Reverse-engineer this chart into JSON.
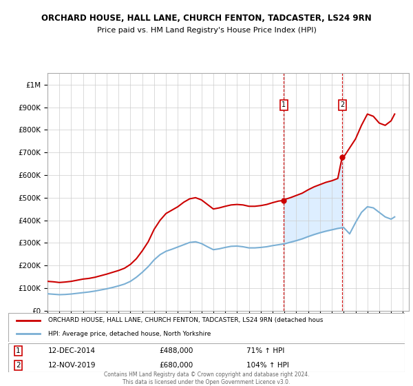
{
  "title": "ORCHARD HOUSE, HALL LANE, CHURCH FENTON, TADCASTER, LS24 9RN",
  "subtitle": "Price paid vs. HM Land Registry's House Price Index (HPI)",
  "ylim": [
    0,
    1050000
  ],
  "yticks": [
    0,
    100000,
    200000,
    300000,
    400000,
    500000,
    600000,
    700000,
    800000,
    900000,
    1000000
  ],
  "ytick_labels": [
    "£0",
    "£100K",
    "£200K",
    "£300K",
    "£400K",
    "£500K",
    "£600K",
    "£700K",
    "£800K",
    "£900K",
    "£1M"
  ],
  "xlim_start": 1995.0,
  "xlim_end": 2025.5,
  "sale1_date": 2014.95,
  "sale1_price": 488000,
  "sale2_date": 2019.87,
  "sale2_price": 680000,
  "red_line_color": "#cc0000",
  "blue_line_color": "#7aafd4",
  "shade_color": "#ddeeff",
  "grid_color": "#cccccc",
  "background_color": "#ffffff",
  "legend_line1": "ORCHARD HOUSE, HALL LANE, CHURCH FENTON, TADCASTER, LS24 9RN (detached hous",
  "legend_line2": "HPI: Average price, detached house, North Yorkshire",
  "footer": "Contains HM Land Registry data © Crown copyright and database right 2024.\nThis data is licensed under the Open Government Licence v3.0.",
  "red_hpi_data": {
    "years": [
      1995.0,
      1995.5,
      1996.0,
      1996.5,
      1997.0,
      1997.5,
      1998.0,
      1998.5,
      1999.0,
      1999.5,
      2000.0,
      2000.5,
      2001.0,
      2001.5,
      2002.0,
      2002.5,
      2003.0,
      2003.5,
      2004.0,
      2004.5,
      2005.0,
      2005.5,
      2006.0,
      2006.5,
      2007.0,
      2007.5,
      2008.0,
      2008.5,
      2009.0,
      2009.5,
      2010.0,
      2010.5,
      2011.0,
      2011.5,
      2012.0,
      2012.5,
      2013.0,
      2013.5,
      2014.0,
      2014.5,
      2014.95,
      2015.0,
      2015.5,
      2016.0,
      2016.5,
      2017.0,
      2017.5,
      2018.0,
      2018.5,
      2019.0,
      2019.5,
      2019.87,
      2020.0,
      2020.5,
      2021.0,
      2021.5,
      2022.0,
      2022.5,
      2023.0,
      2023.5,
      2024.0,
      2024.3
    ],
    "values": [
      130000,
      128000,
      125000,
      127000,
      130000,
      135000,
      140000,
      143000,
      148000,
      155000,
      162000,
      170000,
      178000,
      188000,
      205000,
      230000,
      265000,
      305000,
      360000,
      400000,
      430000,
      445000,
      460000,
      480000,
      495000,
      500000,
      490000,
      470000,
      450000,
      455000,
      462000,
      468000,
      470000,
      468000,
      462000,
      462000,
      465000,
      470000,
      478000,
      485000,
      488000,
      492000,
      500000,
      510000,
      520000,
      535000,
      548000,
      558000,
      568000,
      575000,
      585000,
      680000,
      680000,
      720000,
      760000,
      820000,
      870000,
      860000,
      830000,
      820000,
      840000,
      870000
    ]
  },
  "blue_hpi_data": {
    "years": [
      1995.0,
      1995.5,
      1996.0,
      1996.5,
      1997.0,
      1997.5,
      1998.0,
      1998.5,
      1999.0,
      1999.5,
      2000.0,
      2000.5,
      2001.0,
      2001.5,
      2002.0,
      2002.5,
      2003.0,
      2003.5,
      2004.0,
      2004.5,
      2005.0,
      2005.5,
      2006.0,
      2006.5,
      2007.0,
      2007.5,
      2008.0,
      2008.5,
      2009.0,
      2009.5,
      2010.0,
      2010.5,
      2011.0,
      2011.5,
      2012.0,
      2012.5,
      2013.0,
      2013.5,
      2014.0,
      2014.5,
      2015.0,
      2015.5,
      2016.0,
      2016.5,
      2017.0,
      2017.5,
      2018.0,
      2018.5,
      2019.0,
      2019.5,
      2020.0,
      2020.5,
      2021.0,
      2021.5,
      2022.0,
      2022.5,
      2023.0,
      2023.5,
      2024.0,
      2024.3
    ],
    "values": [
      75000,
      73000,
      71000,
      72000,
      74000,
      77000,
      80000,
      83000,
      87000,
      92000,
      97000,
      103000,
      110000,
      118000,
      130000,
      148000,
      170000,
      195000,
      225000,
      248000,
      263000,
      272000,
      282000,
      292000,
      302000,
      305000,
      297000,
      283000,
      270000,
      274000,
      280000,
      285000,
      286000,
      283000,
      278000,
      278000,
      280000,
      283000,
      288000,
      292000,
      296000,
      303000,
      310000,
      318000,
      328000,
      337000,
      345000,
      352000,
      358000,
      364000,
      368000,
      340000,
      390000,
      435000,
      460000,
      455000,
      435000,
      415000,
      405000,
      415000
    ]
  }
}
